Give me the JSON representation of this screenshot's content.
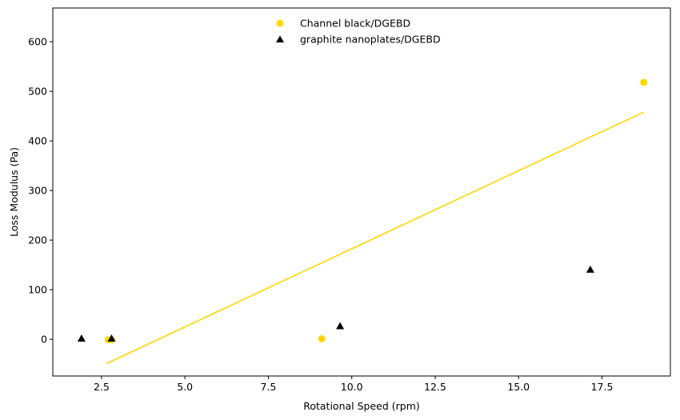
{
  "chart_data": {
    "type": "scatter",
    "title": "",
    "xlabel": "Rotational Speed (rpm)",
    "ylabel": "Loss Modulus (Pa)",
    "xlim": [
      1.04,
      19.55
    ],
    "ylim": [
      -74,
      668
    ],
    "xticks": [
      2.5,
      5.0,
      7.5,
      10.0,
      12.5,
      15.0,
      17.5
    ],
    "xtick_labels": [
      "2.5",
      "5.0",
      "7.5",
      "10.0",
      "12.5",
      "15.0",
      "17.5"
    ],
    "yticks": [
      0,
      100,
      200,
      300,
      400,
      500,
      600
    ],
    "ytick_labels": [
      "0",
      "100",
      "200",
      "300",
      "400",
      "500",
      "600"
    ],
    "grid": false,
    "legend_position": "top-center",
    "series": [
      {
        "name": "Channel black/DGEBD",
        "marker": "circle",
        "color": "#FFD700",
        "points": [
          [
            2.7,
            -1
          ],
          [
            2.8,
            -1
          ],
          [
            9.1,
            1
          ],
          [
            18.75,
            518
          ]
        ]
      },
      {
        "name": "graphite nanoplates/DGEBD",
        "marker": "triangle",
        "color": "#000000",
        "points": [
          [
            1.9,
            1
          ],
          [
            2.8,
            1
          ],
          [
            9.65,
            26
          ],
          [
            17.15,
            140
          ]
        ]
      }
    ],
    "fit_line": {
      "color": "#FFD700",
      "points": [
        [
          2.65,
          -49
        ],
        [
          18.75,
          458
        ]
      ]
    }
  }
}
